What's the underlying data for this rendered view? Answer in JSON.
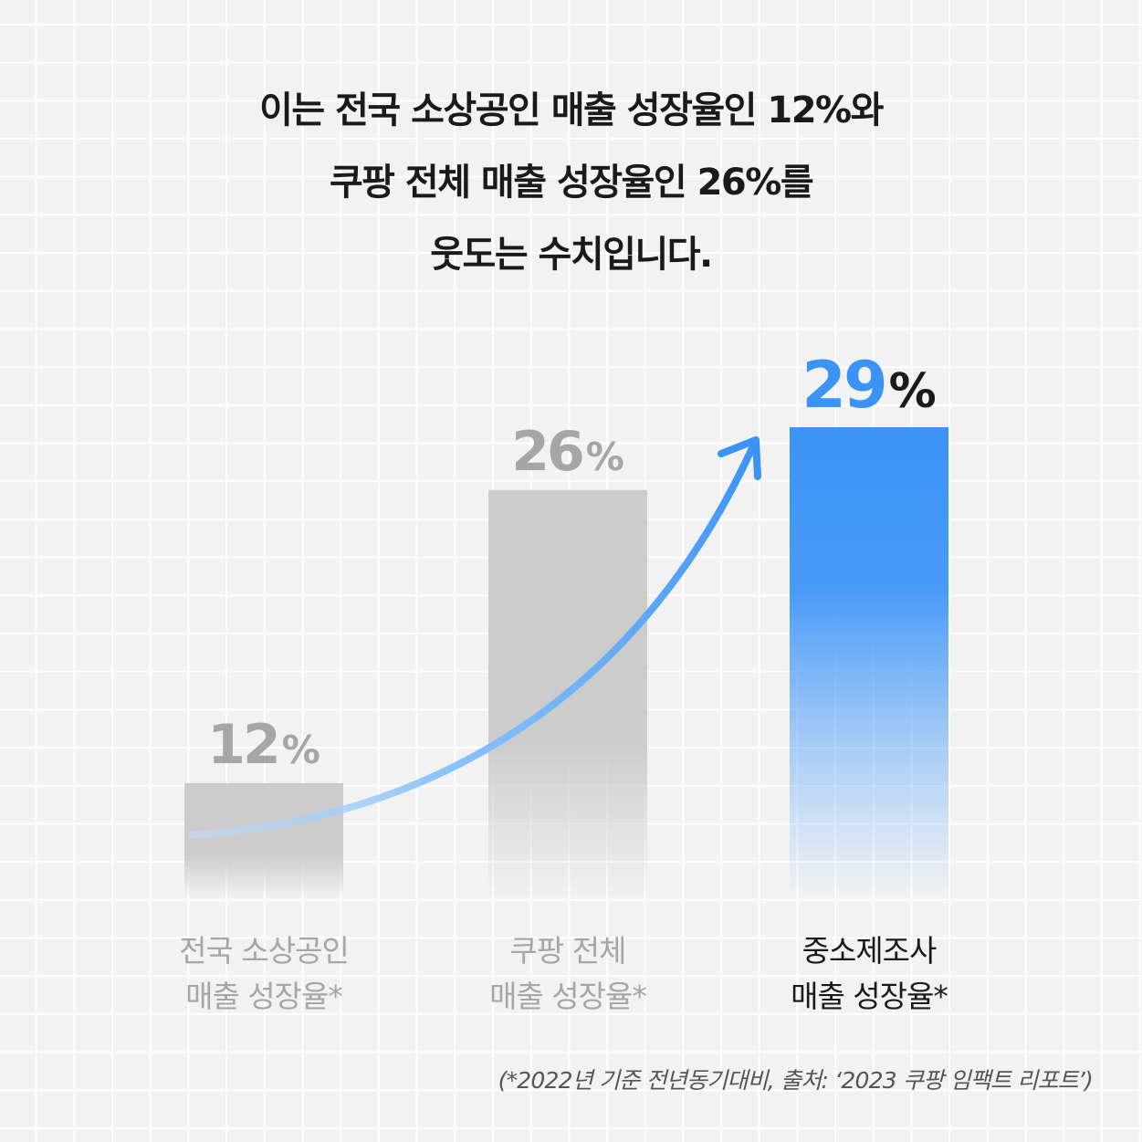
{
  "headline": [
    "이는 전국 소상공인 매출 성장율인 12%와",
    "쿠팡 전체 매출 성장율인 26%를",
    "웃도는 수치입니다."
  ],
  "colors": {
    "grey_bar": "#cccccc",
    "grey_text": "#a6a6a6",
    "accent": "#3b93f6",
    "arrow_start": "#bcdcfc",
    "dark_text": "#1a1a1a"
  },
  "chart_data": {
    "type": "bar",
    "unit": "%",
    "categories": [
      [
        "전국 소상공인",
        "매출 성장율*"
      ],
      [
        "쿠팡 전체",
        "매출 성장율*"
      ],
      [
        "중소제조사",
        "매출 성장율*"
      ]
    ],
    "values": [
      12,
      26,
      29
    ],
    "value_labels": [
      "12",
      "26",
      "29"
    ],
    "highlight_index": 2,
    "ylim": [
      0,
      29
    ],
    "grid": true,
    "annotation": "rising trend arrow from first bar to last bar"
  },
  "source_note": "(*2022년 기준 전년동기대비, 출처: ‘2023 쿠팡 임팩트 리포트’)"
}
